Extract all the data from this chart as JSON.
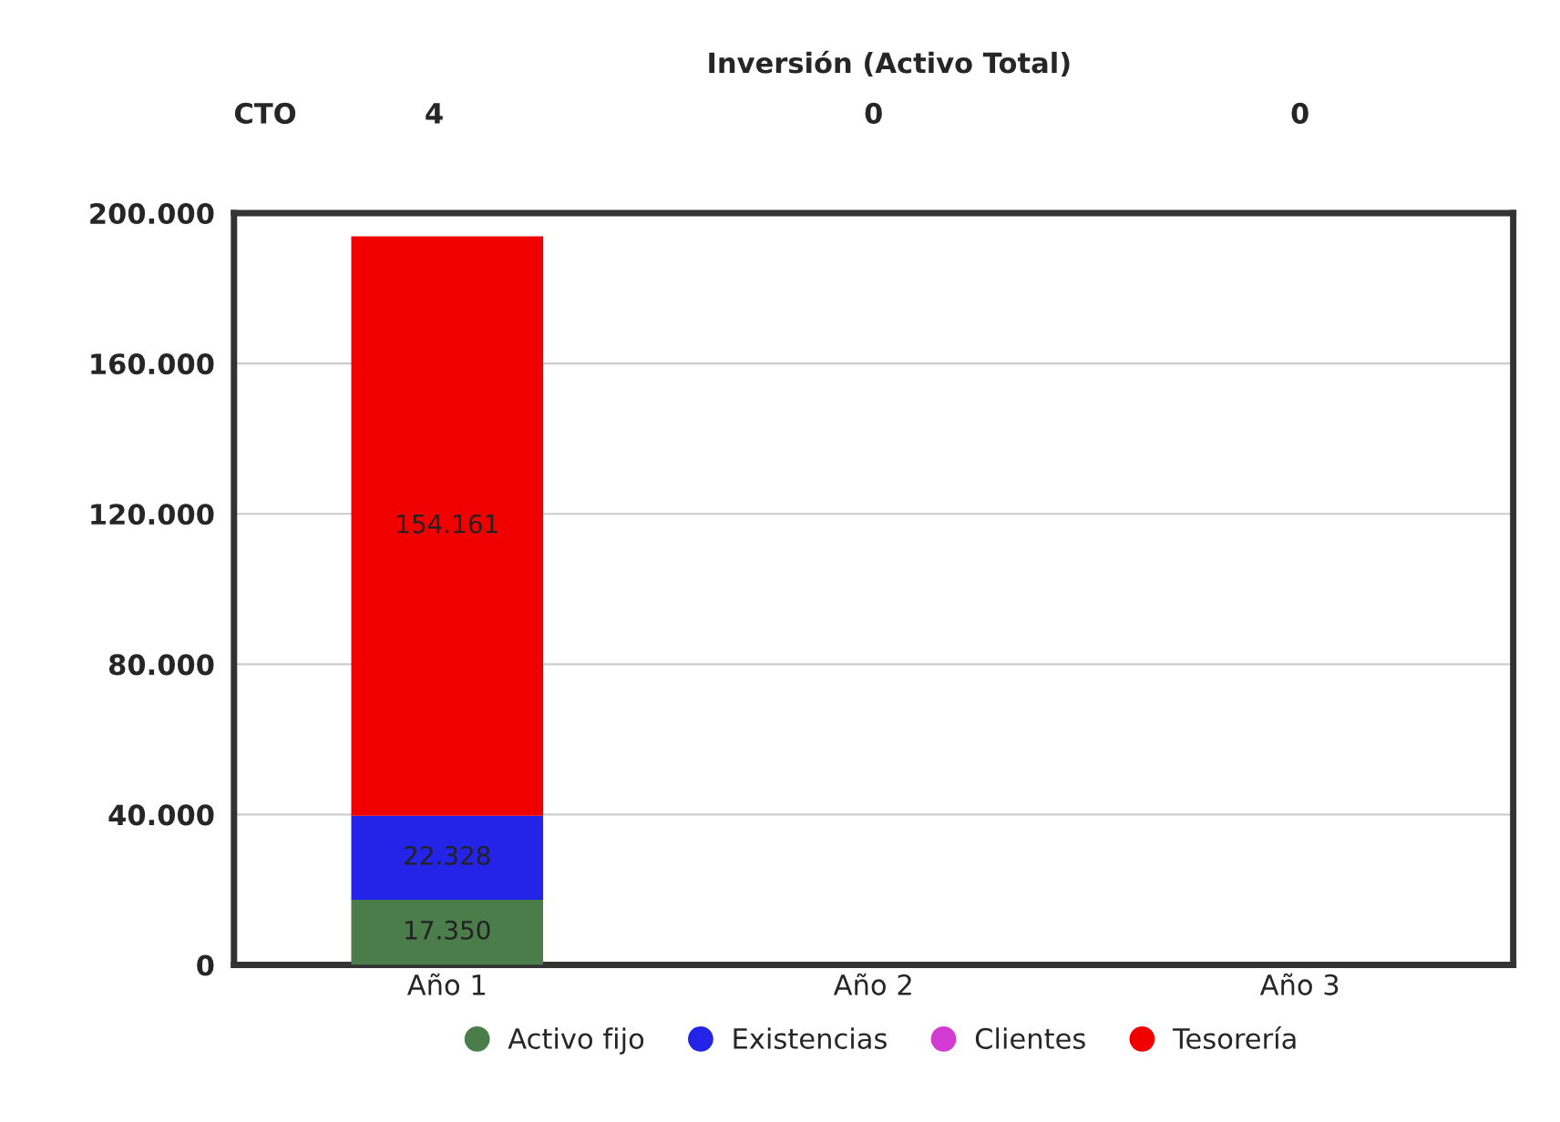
{
  "chart_data": {
    "type": "bar",
    "title": "Inversión (Activo Total)",
    "stacked": true,
    "categories": [
      "Año 1",
      "Año 2",
      "Año 3"
    ],
    "series": [
      {
        "name": "Activo fijo",
        "color": "#4a7d4a",
        "values": [
          17350,
          0,
          0
        ],
        "value_labels": [
          "17.350",
          null,
          null
        ]
      },
      {
        "name": "Existencias",
        "color": "#2424e8",
        "values": [
          22328,
          0,
          0
        ],
        "value_labels": [
          "22.328",
          null,
          null
        ]
      },
      {
        "name": "Clientes",
        "color": "#d23cd2",
        "values": [
          0,
          0,
          0
        ],
        "value_labels": [
          null,
          null,
          null
        ]
      },
      {
        "name": "Tesorería",
        "color": "#f00000",
        "values": [
          154161,
          0,
          0
        ],
        "value_labels": [
          "154.161",
          null,
          null
        ]
      }
    ],
    "ylim": [
      0,
      200000
    ],
    "yticks": [
      0,
      {
        "value": 40000,
        "label": "40.000"
      },
      {
        "value": 80000,
        "label": "80.000"
      },
      {
        "value": 120000,
        "label": "120.000"
      },
      {
        "value": 160000,
        "label": "160.000"
      },
      {
        "value": 200000,
        "label": "200.000"
      }
    ],
    "grid": "y",
    "legend": "bottom",
    "annotations": [
      "CTO",
      "4",
      "0",
      "0"
    ]
  }
}
